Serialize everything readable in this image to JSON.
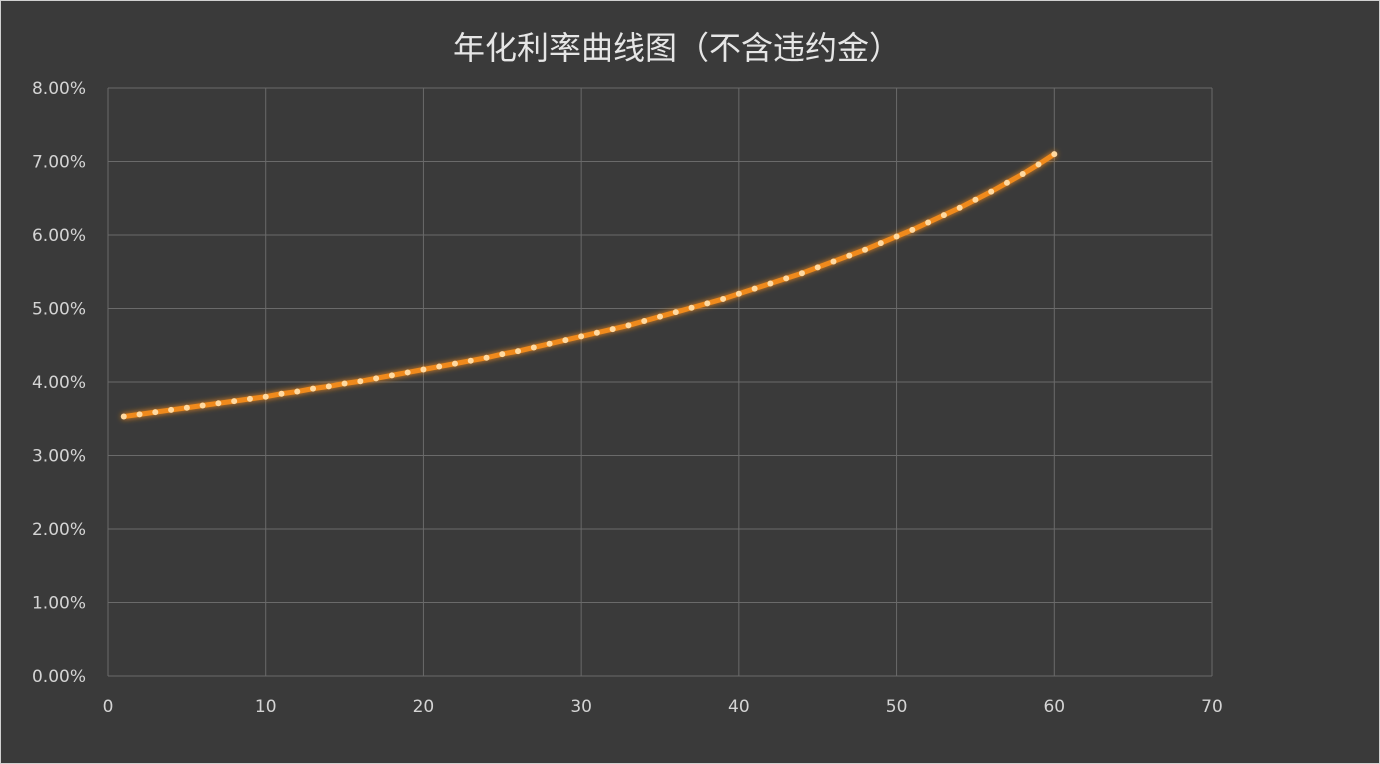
{
  "chart_data": {
    "type": "line",
    "title": "年化利率曲线图（不含违约金）",
    "xlabel": "",
    "ylabel": "",
    "xlim": [
      0,
      70
    ],
    "ylim": [
      0,
      0.08
    ],
    "x_ticks": [
      0,
      10,
      20,
      30,
      40,
      50,
      60,
      70
    ],
    "x_tick_labels": [
      "0",
      "10",
      "20",
      "30",
      "40",
      "50",
      "60",
      "70"
    ],
    "y_ticks": [
      0,
      0.01,
      0.02,
      0.03,
      0.04,
      0.05,
      0.06,
      0.07,
      0.08
    ],
    "y_tick_labels": [
      "0.00%",
      "1.00%",
      "2.00%",
      "3.00%",
      "4.00%",
      "5.00%",
      "6.00%",
      "7.00%",
      "8.00%"
    ],
    "grid": true,
    "legend": "none",
    "background_color": "#3a3a3a",
    "grid_color": "#6a6a6a",
    "series_color": "#f08a1c",
    "marker_color": "#ffd9a0",
    "series": [
      {
        "x": [
          1,
          2,
          3,
          4,
          5,
          6,
          7,
          8,
          9,
          10,
          11,
          12,
          13,
          14,
          15,
          16,
          17,
          18,
          19,
          20,
          21,
          22,
          23,
          24,
          25,
          26,
          27,
          28,
          29,
          30,
          31,
          32,
          33,
          34,
          35,
          36,
          37,
          38,
          39,
          40,
          41,
          42,
          43,
          44,
          45,
          46,
          47,
          48,
          49,
          50,
          51,
          52,
          53,
          54,
          55,
          56,
          57,
          58,
          59,
          60
        ],
        "values": [
          0.0353,
          0.0356,
          0.0359,
          0.0362,
          0.0365,
          0.0368,
          0.0371,
          0.0374,
          0.0377,
          0.038,
          0.0384,
          0.0387,
          0.0391,
          0.0394,
          0.0398,
          0.0401,
          0.0405,
          0.0409,
          0.0413,
          0.0417,
          0.0421,
          0.0425,
          0.0429,
          0.0433,
          0.0438,
          0.0442,
          0.0447,
          0.0452,
          0.0457,
          0.0462,
          0.0467,
          0.0472,
          0.0477,
          0.0483,
          0.0489,
          0.0495,
          0.0501,
          0.0507,
          0.0513,
          0.052,
          0.0527,
          0.0534,
          0.0541,
          0.0548,
          0.0556,
          0.0564,
          0.0572,
          0.058,
          0.0589,
          0.0598,
          0.0607,
          0.0617,
          0.0627,
          0.0637,
          0.0648,
          0.0659,
          0.0671,
          0.0683,
          0.0696,
          0.071
        ]
      }
    ]
  }
}
